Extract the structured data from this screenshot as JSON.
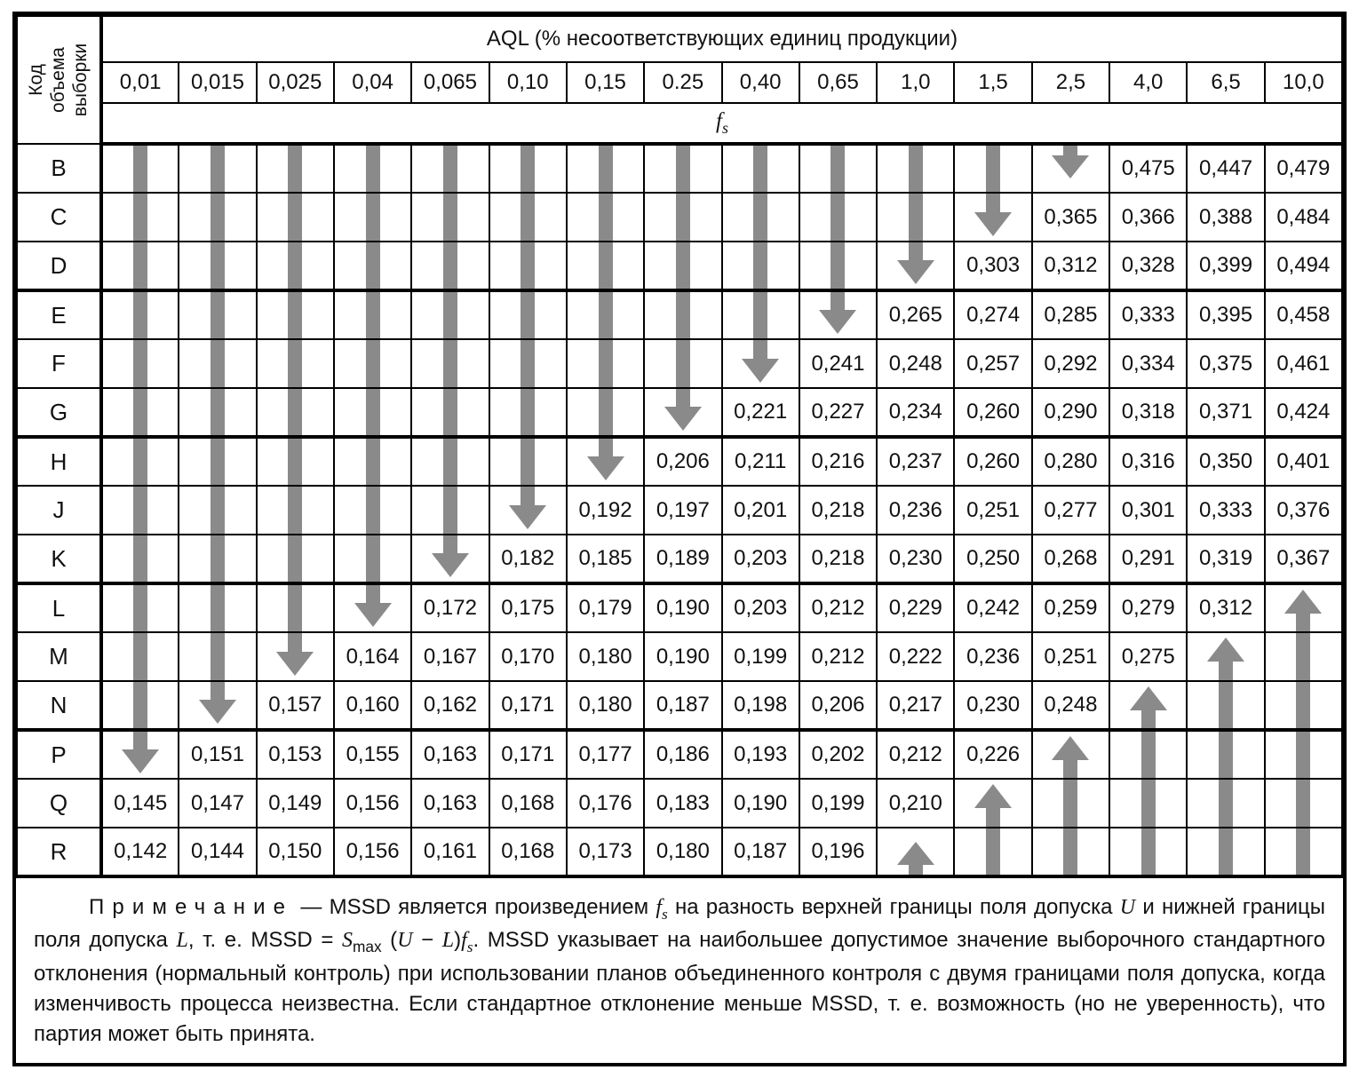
{
  "colors": {
    "arrow": "#8a8a8a",
    "border": "#000000",
    "background": "#ffffff"
  },
  "header": {
    "corner_label_lines": [
      "Код",
      "объема",
      "выборки"
    ],
    "aql_title": "AQL (% несоответствующих единиц продукции)",
    "aql_values": [
      "0,01",
      "0,015",
      "0,025",
      "0,04",
      "0,065",
      "0,10",
      "0,15",
      "0.25",
      "0,40",
      "0,65",
      "1,0",
      "1,5",
      "2,5",
      "4,0",
      "6,5",
      "10,0"
    ],
    "fs_base": "f",
    "fs_sub": "s"
  },
  "chart_data": {
    "type": "table",
    "title": "AQL (% несоответствующих единиц продукции)",
    "columns": [
      "0,01",
      "0,015",
      "0,025",
      "0,04",
      "0,065",
      "0,10",
      "0,15",
      "0.25",
      "0,40",
      "0,65",
      "1,0",
      "1,5",
      "2,5",
      "4,0",
      "6,5",
      "10,0"
    ],
    "row_codes": [
      "B",
      "C",
      "D",
      "E",
      "F",
      "G",
      "H",
      "J",
      "K",
      "L",
      "M",
      "N",
      "P",
      "Q",
      "R"
    ]
  },
  "table": {
    "arrow_tokens": [
      "ds",
      "dh",
      "dhs",
      "us",
      "uh",
      "uhs"
    ],
    "rows": [
      {
        "code": "B",
        "cells": [
          "ds",
          "ds",
          "ds",
          "ds",
          "ds",
          "ds",
          "ds",
          "ds",
          "ds",
          "ds",
          "ds",
          "ds",
          "dhs",
          "0,475",
          "0,447",
          "0,479"
        ]
      },
      {
        "code": "C",
        "cells": [
          "ds",
          "ds",
          "ds",
          "ds",
          "ds",
          "ds",
          "ds",
          "ds",
          "ds",
          "ds",
          "ds",
          "dh",
          "0,365",
          "0,366",
          "0,388",
          "0,484"
        ]
      },
      {
        "code": "D",
        "cells": [
          "ds",
          "ds",
          "ds",
          "ds",
          "ds",
          "ds",
          "ds",
          "ds",
          "ds",
          "ds",
          "dh",
          "0,303",
          "0,312",
          "0,328",
          "0,399",
          "0,494"
        ]
      },
      {
        "code": "E",
        "cells": [
          "ds",
          "ds",
          "ds",
          "ds",
          "ds",
          "ds",
          "ds",
          "ds",
          "ds",
          "dh",
          "0,265",
          "0,274",
          "0,285",
          "0,333",
          "0,395",
          "0,458"
        ]
      },
      {
        "code": "F",
        "cells": [
          "ds",
          "ds",
          "ds",
          "ds",
          "ds",
          "ds",
          "ds",
          "ds",
          "dh",
          "0,241",
          "0,248",
          "0,257",
          "0,292",
          "0,334",
          "0,375",
          "0,461"
        ]
      },
      {
        "code": "G",
        "cells": [
          "ds",
          "ds",
          "ds",
          "ds",
          "ds",
          "ds",
          "ds",
          "dh",
          "0,221",
          "0,227",
          "0,234",
          "0,260",
          "0,290",
          "0,318",
          "0,371",
          "0,424"
        ]
      },
      {
        "code": "H",
        "cells": [
          "ds",
          "ds",
          "ds",
          "ds",
          "ds",
          "ds",
          "dh",
          "0,206",
          "0,211",
          "0,216",
          "0,237",
          "0,260",
          "0,280",
          "0,316",
          "0,350",
          "0,401"
        ]
      },
      {
        "code": "J",
        "cells": [
          "ds",
          "ds",
          "ds",
          "ds",
          "ds",
          "dh",
          "0,192",
          "0,197",
          "0,201",
          "0,218",
          "0,236",
          "0,251",
          "0,277",
          "0,301",
          "0,333",
          "0,376"
        ]
      },
      {
        "code": "K",
        "cells": [
          "ds",
          "ds",
          "ds",
          "ds",
          "dh",
          "0,182",
          "0,185",
          "0,189",
          "0,203",
          "0,218",
          "0,230",
          "0,250",
          "0,268",
          "0,291",
          "0,319",
          "0,367"
        ]
      },
      {
        "code": "L",
        "cells": [
          "ds",
          "ds",
          "ds",
          "dh",
          "0,172",
          "0,175",
          "0,179",
          "0,190",
          "0,203",
          "0,212",
          "0,229",
          "0,242",
          "0,259",
          "0,279",
          "0,312",
          "uh"
        ]
      },
      {
        "code": "M",
        "cells": [
          "ds",
          "ds",
          "dh",
          "0,164",
          "0,167",
          "0,170",
          "0,180",
          "0,190",
          "0,199",
          "0,212",
          "0,222",
          "0,236",
          "0,251",
          "0,275",
          "uh",
          "us"
        ]
      },
      {
        "code": "N",
        "cells": [
          "ds",
          "dh",
          "0,157",
          "0,160",
          "0,162",
          "0,171",
          "0,180",
          "0,187",
          "0,198",
          "0,206",
          "0,217",
          "0,230",
          "0,248",
          "uh",
          "us",
          "us"
        ]
      },
      {
        "code": "P",
        "cells": [
          "dh",
          "0,151",
          "0,153",
          "0,155",
          "0,163",
          "0,171",
          "0,177",
          "0,186",
          "0,193",
          "0,202",
          "0,212",
          "0,226",
          "uh",
          "us",
          "us",
          "us"
        ]
      },
      {
        "code": "Q",
        "cells": [
          "0,145",
          "0,147",
          "0,149",
          "0,156",
          "0,163",
          "0,168",
          "0,176",
          "0,183",
          "0,190",
          "0,199",
          "0,210",
          "uh",
          "us",
          "us",
          "us",
          "us"
        ]
      },
      {
        "code": "R",
        "cells": [
          "0,142",
          "0,144",
          "0,150",
          "0,156",
          "0,161",
          "0,168",
          "0,173",
          "0,180",
          "0,187",
          "0,196",
          "uhs",
          "us",
          "us",
          "us",
          "us",
          "us"
        ]
      }
    ]
  },
  "note": {
    "segments": [
      {
        "t": "Примечание",
        "sp": true
      },
      {
        "t": "  — MSSD является произведением "
      },
      {
        "t": "f",
        "i": true
      },
      {
        "t": "s",
        "i": true,
        "sub": true
      },
      {
        "t": " на разность верхней границы поля допуска "
      },
      {
        "t": "U",
        "i": true
      },
      {
        "t": " и нижней границы поля допуска "
      },
      {
        "t": "L",
        "i": true
      },
      {
        "t": ", т. е. MSSD = "
      },
      {
        "t": "S",
        "i": true
      },
      {
        "t": "max",
        "sub": true
      },
      {
        "t": " ("
      },
      {
        "t": "U",
        "i": true
      },
      {
        "t": " − "
      },
      {
        "t": "L",
        "i": true
      },
      {
        "t": ")"
      },
      {
        "t": "f",
        "i": true
      },
      {
        "t": "s",
        "i": true,
        "sub": true
      },
      {
        "t": ". MSSD указывает на наибольшее допустимое значение выборочного стандартного отклонения (нормальный контроль) при использовании планов объединенного контроля с двумя границами поля допуска, когда изменчивость процесса неизвестна. Если стандартное отклонение меньше MSSD, т. е. возможность (но не уверенность), что партия может быть принята."
      }
    ]
  }
}
